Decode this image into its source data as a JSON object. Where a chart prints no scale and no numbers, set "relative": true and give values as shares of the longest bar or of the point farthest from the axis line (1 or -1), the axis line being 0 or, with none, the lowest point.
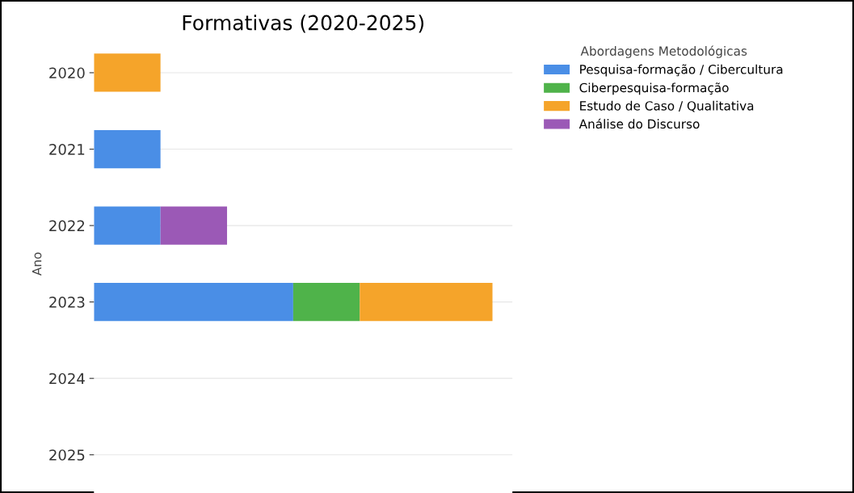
{
  "chart_data": {
    "type": "bar",
    "orientation": "horizontal",
    "stacked": true,
    "relative": true,
    "title": "Formativas (2020-2025)",
    "ylabel": "Ano",
    "legend_title": "Abordagens Metodológicas",
    "legend": "top right",
    "grid": "y",
    "categories": [
      "2020",
      "2021",
      "2022",
      "2023",
      "2024",
      "2025"
    ],
    "series": [
      {
        "name": "Pesquisa-formação / Cibercultura",
        "color": "#4a8ee6",
        "values": [
          0,
          0.167,
          0.167,
          0.5,
          0,
          0
        ]
      },
      {
        "name": "Ciberpesquisa-formação",
        "color": "#4fb34a",
        "values": [
          0,
          0,
          0,
          0.167,
          0,
          0
        ]
      },
      {
        "name": "Estudo de Caso / Qualitativa",
        "color": "#f5a42a",
        "values": [
          0.167,
          0,
          0,
          0.333,
          0,
          0
        ]
      },
      {
        "name": "Análise do Discurso",
        "color": "#9b59b6",
        "values": [
          0,
          0,
          0.167,
          0,
          0,
          0
        ]
      }
    ]
  }
}
